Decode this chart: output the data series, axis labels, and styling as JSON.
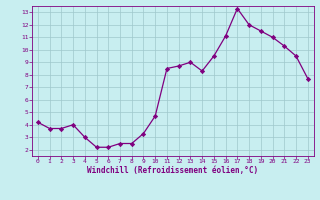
{
  "x": [
    0,
    1,
    2,
    3,
    4,
    5,
    6,
    7,
    8,
    9,
    10,
    11,
    12,
    13,
    14,
    15,
    16,
    17,
    18,
    19,
    20,
    21,
    22,
    23
  ],
  "y": [
    4.2,
    3.7,
    3.7,
    4.0,
    3.0,
    2.2,
    2.2,
    2.5,
    2.5,
    3.3,
    4.7,
    8.5,
    8.7,
    9.0,
    8.3,
    9.5,
    11.1,
    13.3,
    12.0,
    11.5,
    11.0,
    10.3,
    9.5,
    7.7
  ],
  "line_color": "#800080",
  "marker_color": "#800080",
  "bg_color": "#c8eef0",
  "grid_color": "#9fc8cc",
  "xlabel": "Windchill (Refroidissement éolien,°C)",
  "xlim": [
    -0.5,
    23.5
  ],
  "ylim": [
    1.5,
    13.5
  ],
  "yticks": [
    2,
    3,
    4,
    5,
    6,
    7,
    8,
    9,
    10,
    11,
    12,
    13
  ],
  "xticks": [
    0,
    1,
    2,
    3,
    4,
    5,
    6,
    7,
    8,
    9,
    10,
    11,
    12,
    13,
    14,
    15,
    16,
    17,
    18,
    19,
    20,
    21,
    22,
    23
  ],
  "figsize": [
    3.2,
    2.0
  ],
  "dpi": 100
}
